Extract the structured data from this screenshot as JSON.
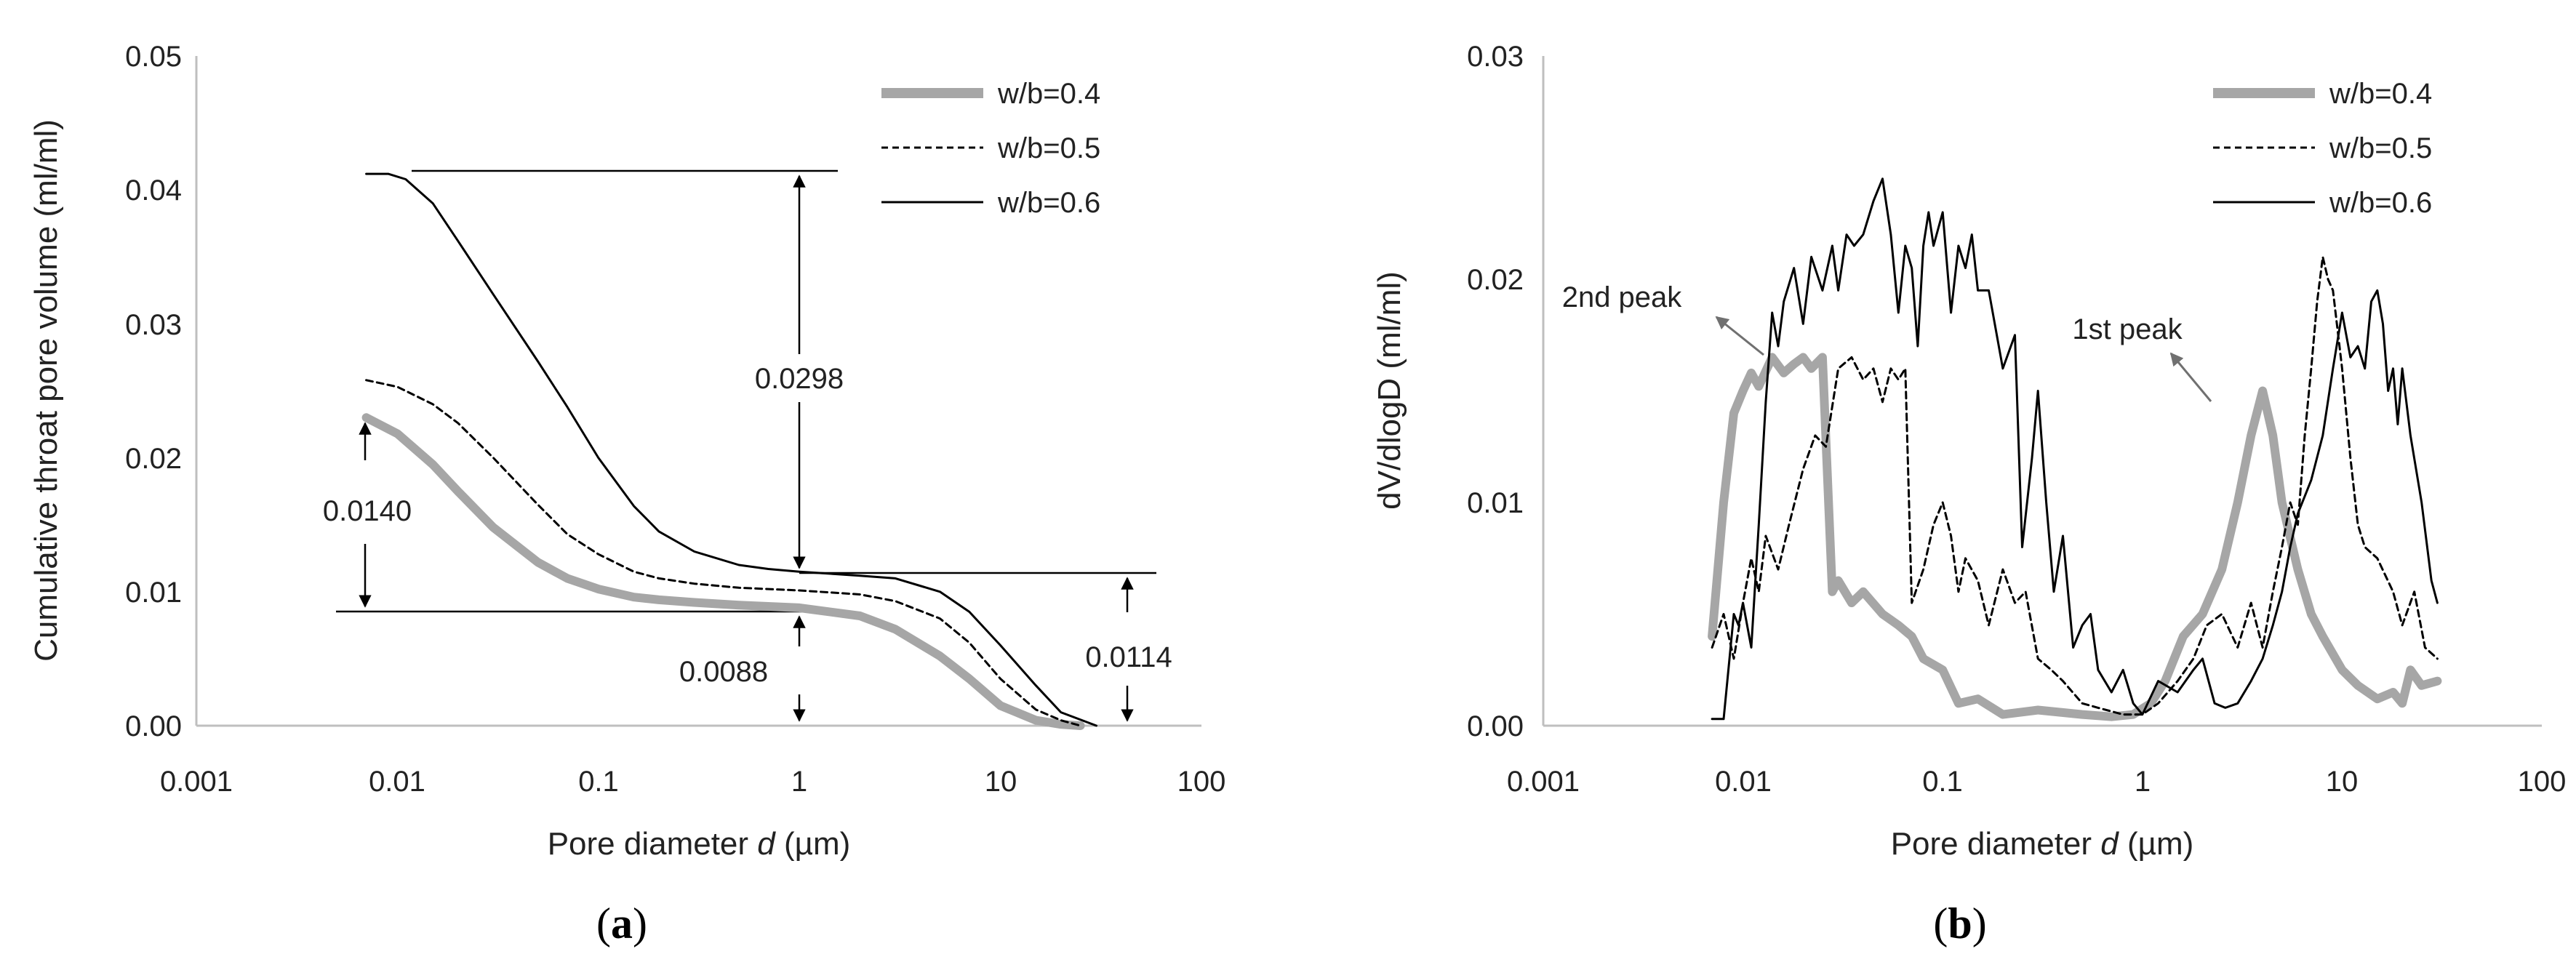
{
  "chart_data": [
    {
      "type": "line",
      "panel_label": "(a)",
      "xlabel_prefix": "Pore diameter ",
      "xlabel_var": "d",
      "xlabel_unit": " (µm)",
      "ylabel": "Cumulative throat pore volume (ml/ml)",
      "xscale": "log",
      "xlim": [
        0.001,
        100
      ],
      "ylim": [
        0,
        0.05
      ],
      "xticks": [
        "0.001",
        "0.01",
        "0.1",
        "1",
        "10",
        "100"
      ],
      "yticks": [
        "0.00",
        "0.01",
        "0.02",
        "0.03",
        "0.04",
        "0.05"
      ],
      "legend_position": "top-right",
      "series": [
        {
          "name": "w/b=0.4",
          "style": "thick-gray",
          "x": [
            0.007,
            0.01,
            0.015,
            0.02,
            0.03,
            0.05,
            0.07,
            0.1,
            0.15,
            0.2,
            0.3,
            0.5,
            1,
            2,
            3,
            5,
            7,
            10,
            15,
            20,
            25
          ],
          "y": [
            0.023,
            0.0218,
            0.0195,
            0.0175,
            0.0148,
            0.0122,
            0.011,
            0.0102,
            0.0096,
            0.0094,
            0.0092,
            0.009,
            0.0088,
            0.0082,
            0.0072,
            0.0052,
            0.0035,
            0.0015,
            0.0004,
            0.0001,
            0.0
          ]
        },
        {
          "name": "w/b=0.5",
          "style": "dashed",
          "x": [
            0.007,
            0.01,
            0.015,
            0.02,
            0.03,
            0.05,
            0.07,
            0.1,
            0.15,
            0.2,
            0.3,
            0.5,
            1,
            2,
            3,
            5,
            7,
            10,
            15,
            20,
            25
          ],
          "y": [
            0.0258,
            0.0253,
            0.024,
            0.0226,
            0.02,
            0.0165,
            0.0143,
            0.0128,
            0.0115,
            0.011,
            0.0106,
            0.0103,
            0.0101,
            0.0098,
            0.0093,
            0.008,
            0.0062,
            0.0035,
            0.0012,
            0.0004,
            0.0
          ]
        },
        {
          "name": "w/b=0.6",
          "style": "solid",
          "x": [
            0.007,
            0.009,
            0.011,
            0.015,
            0.02,
            0.03,
            0.05,
            0.07,
            0.1,
            0.15,
            0.2,
            0.3,
            0.5,
            0.7,
            1,
            2,
            3,
            5,
            7,
            10,
            15,
            20,
            30
          ],
          "y": [
            0.0412,
            0.0412,
            0.0408,
            0.039,
            0.0362,
            0.0322,
            0.0272,
            0.0238,
            0.02,
            0.0164,
            0.0145,
            0.013,
            0.012,
            0.0117,
            0.0115,
            0.0112,
            0.011,
            0.01,
            0.0085,
            0.006,
            0.003,
            0.001,
            0.0
          ]
        }
      ],
      "annotations": [
        {
          "text": "0.0298",
          "from": 0.0114,
          "to": 0.0412
        },
        {
          "text": "0.0140",
          "from": 0.0088,
          "to": 0.0228
        },
        {
          "text": "0.0088",
          "from": 0.0,
          "to": 0.0088
        },
        {
          "text": "0.0114",
          "from": 0.0,
          "to": 0.0114
        }
      ]
    },
    {
      "type": "line",
      "panel_label": "(b)",
      "xlabel_prefix": "Pore diameter ",
      "xlabel_var": "d",
      "xlabel_unit": " (µm)",
      "ylabel": "dV/dlogD (ml/ml)",
      "xscale": "log",
      "xlim": [
        0.001,
        100
      ],
      "ylim": [
        0,
        0.03
      ],
      "xticks": [
        "0.001",
        "0.01",
        "0.1",
        "1",
        "10",
        "100"
      ],
      "yticks": [
        "0.00",
        "0.01",
        "0.02",
        "0.03"
      ],
      "legend_position": "top-right",
      "series": [
        {
          "name": "w/b=0.4",
          "style": "thick-gray",
          "x": [
            0.007,
            0.008,
            0.009,
            0.01,
            0.011,
            0.012,
            0.014,
            0.016,
            0.018,
            0.02,
            0.022,
            0.025,
            0.028,
            0.03,
            0.035,
            0.04,
            0.05,
            0.06,
            0.07,
            0.08,
            0.1,
            0.12,
            0.15,
            0.2,
            0.3,
            0.5,
            0.7,
            0.9,
            1.1,
            1.3,
            1.6,
            2,
            2.5,
            3,
            3.5,
            4,
            4.5,
            5,
            6,
            7,
            8,
            10,
            12,
            15,
            18,
            20,
            22,
            25,
            30
          ],
          "y": [
            0.004,
            0.01,
            0.014,
            0.015,
            0.0158,
            0.0152,
            0.0165,
            0.0158,
            0.0162,
            0.0165,
            0.016,
            0.0165,
            0.006,
            0.0065,
            0.0055,
            0.006,
            0.005,
            0.0045,
            0.004,
            0.003,
            0.0025,
            0.001,
            0.0012,
            0.0005,
            0.0007,
            0.0005,
            0.0004,
            0.0005,
            0.001,
            0.002,
            0.004,
            0.005,
            0.007,
            0.01,
            0.013,
            0.015,
            0.013,
            0.01,
            0.007,
            0.005,
            0.004,
            0.0025,
            0.0018,
            0.0012,
            0.0015,
            0.001,
            0.0025,
            0.0018,
            0.002
          ]
        },
        {
          "name": "w/b=0.5",
          "style": "dashed",
          "x": [
            0.007,
            0.008,
            0.009,
            0.01,
            0.011,
            0.012,
            0.013,
            0.015,
            0.017,
            0.02,
            0.023,
            0.026,
            0.03,
            0.035,
            0.04,
            0.045,
            0.05,
            0.055,
            0.06,
            0.065,
            0.07,
            0.08,
            0.09,
            0.1,
            0.11,
            0.12,
            0.13,
            0.15,
            0.17,
            0.2,
            0.23,
            0.26,
            0.3,
            0.35,
            0.4,
            0.5,
            0.6,
            0.8,
            1.0,
            1.2,
            1.5,
            1.8,
            2.1,
            2.5,
            3,
            3.5,
            4,
            4.5,
            5,
            5.5,
            6,
            6.5,
            7,
            7.5,
            8,
            8.5,
            9,
            10,
            11,
            12,
            13,
            15,
            18,
            20,
            23,
            26,
            30
          ],
          "y": [
            0.0035,
            0.005,
            0.003,
            0.0055,
            0.0075,
            0.006,
            0.0085,
            0.007,
            0.009,
            0.0115,
            0.013,
            0.0125,
            0.016,
            0.0165,
            0.0155,
            0.016,
            0.0145,
            0.016,
            0.0155,
            0.016,
            0.0055,
            0.007,
            0.009,
            0.01,
            0.0085,
            0.006,
            0.0075,
            0.0065,
            0.0045,
            0.007,
            0.0055,
            0.006,
            0.003,
            0.0025,
            0.002,
            0.001,
            0.0008,
            0.0005,
            0.0005,
            0.001,
            0.002,
            0.003,
            0.0045,
            0.005,
            0.0035,
            0.0055,
            0.0035,
            0.006,
            0.008,
            0.01,
            0.009,
            0.013,
            0.016,
            0.019,
            0.021,
            0.02,
            0.0195,
            0.016,
            0.012,
            0.009,
            0.008,
            0.0075,
            0.006,
            0.0045,
            0.006,
            0.0035,
            0.003
          ]
        },
        {
          "name": "w/b=0.6",
          "style": "solid",
          "x": [
            0.007,
            0.0075,
            0.008,
            0.009,
            0.0095,
            0.01,
            0.011,
            0.012,
            0.013,
            0.014,
            0.015,
            0.016,
            0.018,
            0.02,
            0.022,
            0.025,
            0.028,
            0.03,
            0.033,
            0.036,
            0.04,
            0.045,
            0.05,
            0.055,
            0.06,
            0.065,
            0.07,
            0.075,
            0.08,
            0.085,
            0.09,
            0.1,
            0.11,
            0.12,
            0.13,
            0.14,
            0.15,
            0.17,
            0.2,
            0.23,
            0.25,
            0.28,
            0.3,
            0.33,
            0.36,
            0.4,
            0.45,
            0.5,
            0.55,
            0.6,
            0.7,
            0.8,
            0.9,
            1.0,
            1.2,
            1.5,
            1.8,
            2.0,
            2.3,
            2.6,
            3.0,
            3.5,
            4,
            4.5,
            5,
            5.5,
            6,
            7,
            8,
            9,
            10,
            11,
            12,
            13,
            14,
            15,
            16,
            17,
            18,
            19,
            20,
            22,
            25,
            28,
            30
          ],
          "y": [
            0.0003,
            0.0003,
            0.0003,
            0.005,
            0.0045,
            0.0055,
            0.0035,
            0.009,
            0.0145,
            0.0185,
            0.017,
            0.019,
            0.0205,
            0.018,
            0.021,
            0.0195,
            0.0215,
            0.0195,
            0.022,
            0.0215,
            0.022,
            0.0235,
            0.0245,
            0.022,
            0.0185,
            0.0215,
            0.0205,
            0.017,
            0.0215,
            0.023,
            0.0215,
            0.023,
            0.0185,
            0.0215,
            0.0205,
            0.022,
            0.0195,
            0.0195,
            0.016,
            0.0175,
            0.008,
            0.012,
            0.015,
            0.01,
            0.006,
            0.0085,
            0.0035,
            0.0045,
            0.005,
            0.0025,
            0.0015,
            0.0025,
            0.001,
            0.0005,
            0.002,
            0.0015,
            0.0025,
            0.003,
            0.001,
            0.0008,
            0.001,
            0.002,
            0.003,
            0.0045,
            0.006,
            0.008,
            0.0095,
            0.011,
            0.013,
            0.016,
            0.0185,
            0.0165,
            0.017,
            0.016,
            0.019,
            0.0195,
            0.018,
            0.015,
            0.016,
            0.0135,
            0.016,
            0.013,
            0.01,
            0.0065,
            0.0055
          ]
        }
      ],
      "annotations": [
        {
          "text": "2nd peak",
          "target_x": 0.016,
          "target_y": 0.0167
        },
        {
          "text": "1st peak",
          "target_x": 4.0,
          "target_y": 0.0153
        }
      ]
    }
  ]
}
